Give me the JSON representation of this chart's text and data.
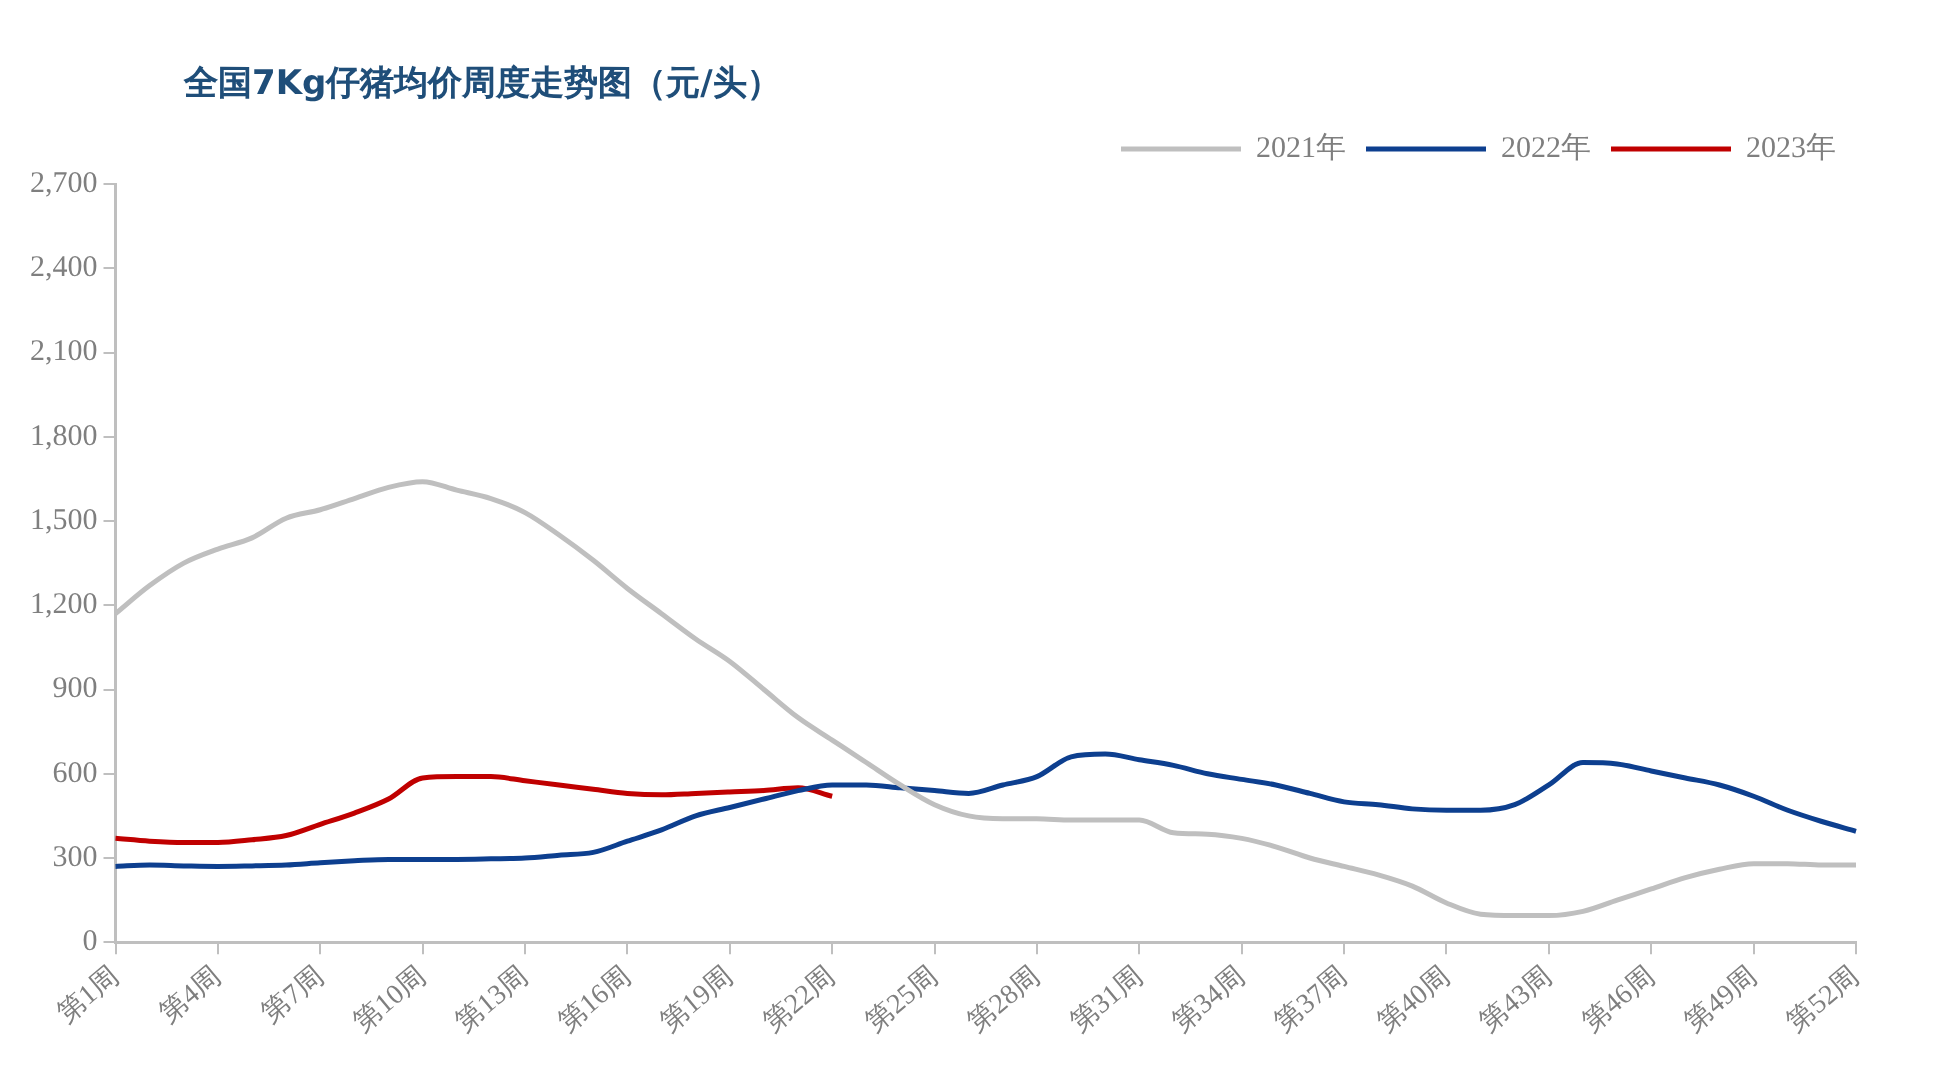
{
  "chart_data": {
    "type": "line",
    "title": "全国7Kg仔猪均价周度走势图（元/头）",
    "categories": [
      "第1周",
      null,
      null,
      "第4周",
      null,
      null,
      "第7周",
      null,
      null,
      "第10周",
      null,
      null,
      "第13周",
      null,
      null,
      "第16周",
      null,
      null,
      "第19周",
      null,
      null,
      "第22周",
      null,
      null,
      "第25周",
      null,
      null,
      "第28周",
      null,
      null,
      "第31周",
      null,
      null,
      "第34周",
      null,
      null,
      "第37周",
      null,
      null,
      "第40周",
      null,
      null,
      "第43周",
      null,
      null,
      "第46周",
      null,
      null,
      "第49周",
      null,
      null,
      "第52周"
    ],
    "series": [
      {
        "name": "2021年",
        "color": "#bfbfbf",
        "values": [
          1170,
          1270,
          1350,
          1400,
          1440,
          1510,
          1540,
          1580,
          1620,
          1640,
          1610,
          1580,
          1530,
          1450,
          1360,
          1260,
          1170,
          1080,
          1000,
          900,
          800,
          720,
          640,
          560,
          490,
          450,
          440,
          440,
          435,
          435,
          435,
          390,
          385,
          370,
          340,
          300,
          270,
          240,
          200,
          140,
          100,
          95,
          95,
          110,
          150,
          190,
          230,
          260,
          280,
          280,
          275,
          275
        ]
      },
      {
        "name": "2022年",
        "color": "#0d3f8f",
        "values": [
          270,
          275,
          272,
          270,
          272,
          275,
          283,
          290,
          295,
          295,
          295,
          297,
          300,
          310,
          320,
          360,
          400,
          450,
          480,
          510,
          540,
          560,
          560,
          550,
          540,
          530,
          560,
          590,
          660,
          670,
          650,
          630,
          600,
          580,
          560,
          530,
          500,
          490,
          475,
          470,
          470,
          490,
          560,
          640,
          635,
          610,
          585,
          560,
          520,
          470,
          430,
          395
        ]
      },
      {
        "name": "2023年",
        "color": "#c00000",
        "values": [
          370,
          360,
          355,
          355,
          365,
          380,
          420,
          460,
          510,
          585,
          590,
          590,
          575,
          560,
          545,
          530,
          525,
          530,
          535,
          540,
          550,
          520,
          null,
          null,
          null,
          null,
          null,
          null,
          null,
          null,
          null,
          null,
          null,
          null,
          null,
          null,
          null,
          null,
          null,
          null,
          null,
          null,
          null,
          null,
          null,
          null,
          null,
          null,
          null,
          null,
          null,
          null
        ]
      }
    ],
    "ylim": [
      0,
      2700
    ],
    "yticks": [
      0,
      {
        "value": 300,
        "label": "300"
      },
      600,
      900,
      {
        "value": 1200,
        "label": "1,200"
      },
      {
        "value": 1500,
        "label": "1,500"
      },
      {
        "value": 1800,
        "label": "1,800"
      },
      {
        "value": 2100,
        "label": "2,100"
      },
      {
        "value": 2400,
        "label": "2,400"
      },
      {
        "value": 2700,
        "label": "2,700"
      }
    ],
    "grid": false,
    "legend": "top",
    "marker": "none",
    "line_style": "solid"
  }
}
